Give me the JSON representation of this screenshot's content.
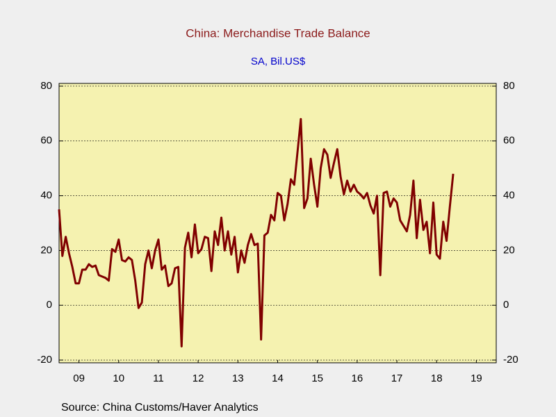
{
  "chart_data": {
    "type": "line",
    "title": "China: Merchandise Trade Balance",
    "subtitle": "SA, Bil.US$",
    "source": "Source:  China Customs/Haver Analytics",
    "x": [
      2009,
      2009.083,
      2009.167,
      2009.25,
      2009.333,
      2009.417,
      2009.5,
      2009.583,
      2009.667,
      2009.75,
      2009.833,
      2009.917,
      2010,
      2010.083,
      2010.167,
      2010.25,
      2010.333,
      2010.417,
      2010.5,
      2010.583,
      2010.667,
      2010.75,
      2010.833,
      2010.917,
      2011,
      2011.083,
      2011.167,
      2011.25,
      2011.333,
      2011.417,
      2011.5,
      2011.583,
      2011.667,
      2011.75,
      2011.833,
      2011.917,
      2012,
      2012.083,
      2012.167,
      2012.25,
      2012.333,
      2012.417,
      2012.5,
      2012.583,
      2012.667,
      2012.75,
      2012.833,
      2012.917,
      2013,
      2013.083,
      2013.167,
      2013.25,
      2013.333,
      2013.417,
      2013.5,
      2013.583,
      2013.667,
      2013.75,
      2013.833,
      2013.917,
      2014,
      2014.083,
      2014.167,
      2014.25,
      2014.333,
      2014.417,
      2014.5,
      2014.583,
      2014.667,
      2014.75,
      2014.833,
      2014.917,
      2015,
      2015.083,
      2015.167,
      2015.25,
      2015.333,
      2015.417,
      2015.5,
      2015.583,
      2015.667,
      2015.75,
      2015.833,
      2015.917,
      2016,
      2016.083,
      2016.167,
      2016.25,
      2016.333,
      2016.417,
      2016.5,
      2016.583,
      2016.667,
      2016.75,
      2016.833,
      2016.917,
      2017,
      2017.083,
      2017.167,
      2017.25,
      2017.333,
      2017.417,
      2017.5,
      2017.583,
      2017.667,
      2017.75,
      2017.833,
      2017.917,
      2018,
      2018.083,
      2018.167,
      2018.25,
      2018.333,
      2018.417,
      2018.5,
      2018.583,
      2018.667,
      2018.75,
      2018.833,
      2018.917
    ],
    "series": [
      {
        "color": "#800000",
        "values": [
          35,
          18,
          25,
          19,
          14,
          8,
          8,
          13,
          13,
          15,
          14,
          14.5,
          11,
          10.5,
          10,
          9,
          20.5,
          19.5,
          24,
          16.5,
          16,
          17.5,
          16.5,
          9,
          -1,
          1,
          15,
          20,
          13.5,
          20,
          24,
          13,
          14.5,
          7,
          8,
          13.5,
          14,
          -15,
          21,
          26.5,
          17.5,
          29.5,
          19,
          20.5,
          25,
          24.5,
          12.5,
          27,
          22,
          32,
          20,
          27,
          18.5,
          25,
          12,
          20,
          15.5,
          22,
          26,
          22,
          22.5,
          -12.5,
          25.5,
          26.5,
          33,
          31,
          41,
          40,
          31,
          37,
          46,
          44,
          56,
          68,
          35.5,
          39,
          53.5,
          44,
          36,
          50,
          57,
          55,
          46.5,
          52,
          57,
          47,
          40.5,
          45.5,
          41.5,
          44,
          41.5,
          40.5,
          39,
          41,
          36.5,
          33.5,
          40,
          11,
          41,
          41.5,
          36,
          39,
          37.5,
          31,
          29,
          27,
          33,
          45.5,
          24.5,
          38.5,
          27.5,
          30.5,
          19,
          37.5,
          18.5,
          17,
          30.5,
          23.5,
          36,
          48
        ]
      }
    ],
    "xlim": [
      2009,
      2020
    ],
    "xticks": [
      {
        "value": 2009.5,
        "label": "09"
      },
      {
        "value": 2010.5,
        "label": "10"
      },
      {
        "value": 2011.5,
        "label": "11"
      },
      {
        "value": 2012.5,
        "label": "12"
      },
      {
        "value": 2013.5,
        "label": "13"
      },
      {
        "value": 2014.5,
        "label": "14"
      },
      {
        "value": 2015.5,
        "label": "15"
      },
      {
        "value": 2016.5,
        "label": "16"
      },
      {
        "value": 2017.5,
        "label": "17"
      },
      {
        "value": 2018.5,
        "label": "18"
      },
      {
        "value": 2019.5,
        "label": "19"
      }
    ],
    "ylim": [
      -21,
      81
    ],
    "yticks": [
      -20,
      0,
      20,
      40,
      60,
      80
    ],
    "grid": true,
    "plot_background": "#f5f2b0",
    "title_color": "#8b1a1a",
    "subtitle_color": "#0000cc"
  }
}
